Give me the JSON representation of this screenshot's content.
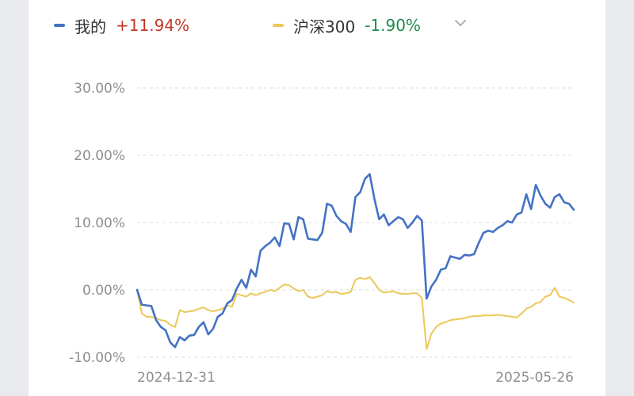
{
  "legend": {
    "series_a": {
      "name": "我的",
      "change": "+11.94%",
      "color": "#4472c4",
      "change_color": "#c0392b"
    },
    "series_b": {
      "name": "沪深300",
      "change": "-1.90%",
      "color": "#ecc85a",
      "change_color": "#1e8a4c"
    },
    "dropdown_icon": "chevron-down-icon"
  },
  "chart_data": {
    "type": "line",
    "ylim": [
      -10,
      30
    ],
    "yticks": [
      "30.00%",
      "20.00%",
      "10.00%",
      "0.00%",
      "-10.00%"
    ],
    "ytick_values": [
      30,
      20,
      10,
      0,
      -10
    ],
    "grid": true,
    "x_start_label": "2024-12-31",
    "x_end_label": "2025-05-26",
    "series": [
      {
        "name": "我的",
        "color": "#4472c4",
        "values": [
          0.0,
          -2.2,
          -2.3,
          -2.4,
          -4.5,
          -5.5,
          -6.0,
          -7.8,
          -8.5,
          -7.0,
          -7.5,
          -6.8,
          -6.7,
          -5.5,
          -4.8,
          -6.6,
          -5.8,
          -4.0,
          -3.5,
          -2.0,
          -1.5,
          0.2,
          1.5,
          0.3,
          3.0,
          2.0,
          5.8,
          6.5,
          7.0,
          7.8,
          6.5,
          9.9,
          9.8,
          7.5,
          10.8,
          10.5,
          7.6,
          7.5,
          7.4,
          8.5,
          12.8,
          12.5,
          11.0,
          10.2,
          9.8,
          8.6,
          13.8,
          14.5,
          16.5,
          17.2,
          13.5,
          10.5,
          11.2,
          9.6,
          10.2,
          10.8,
          10.5,
          9.2,
          10.0,
          11.0,
          10.3,
          -1.3,
          0.5,
          1.5,
          3.0,
          3.2,
          5.0,
          4.8,
          4.6,
          5.2,
          5.1,
          5.3,
          7.0,
          8.5,
          8.8,
          8.6,
          9.2,
          9.6,
          10.2,
          10.0,
          11.2,
          11.5,
          14.2,
          12.0,
          15.6,
          14.0,
          12.8,
          12.2,
          13.8,
          14.2,
          13.0,
          12.8,
          11.9
        ]
      },
      {
        "name": "沪深300",
        "color": "#ecc85a",
        "values": [
          0.0,
          -3.5,
          -4.0,
          -4.0,
          -4.2,
          -4.5,
          -4.6,
          -5.2,
          -5.5,
          -3.0,
          -3.3,
          -3.2,
          -3.1,
          -2.8,
          -2.6,
          -3.0,
          -3.2,
          -3.0,
          -2.8,
          -2.3,
          -2.5,
          -0.6,
          -0.8,
          -1.0,
          -0.5,
          -0.8,
          -0.5,
          -0.3,
          0.0,
          -0.2,
          0.3,
          0.8,
          0.7,
          0.2,
          -0.2,
          0.0,
          -1.0,
          -1.2,
          -1.0,
          -0.8,
          -0.2,
          -0.4,
          -0.3,
          -0.6,
          -0.5,
          -0.3,
          1.5,
          1.8,
          1.6,
          1.9,
          1.0,
          0.0,
          -0.4,
          -0.3,
          -0.2,
          -0.5,
          -0.6,
          -0.6,
          -0.5,
          -0.5,
          -1.2,
          -8.8,
          -6.5,
          -5.5,
          -5.0,
          -4.8,
          -4.5,
          -4.4,
          -4.3,
          -4.2,
          -4.0,
          -3.9,
          -3.9,
          -3.8,
          -3.8,
          -3.8,
          -3.7,
          -3.8,
          -3.9,
          -4.0,
          -4.1,
          -3.5,
          -2.8,
          -2.5,
          -2.0,
          -1.8,
          -1.0,
          -0.8,
          0.3,
          -1.0,
          -1.2,
          -1.5,
          -1.9
        ]
      }
    ]
  }
}
